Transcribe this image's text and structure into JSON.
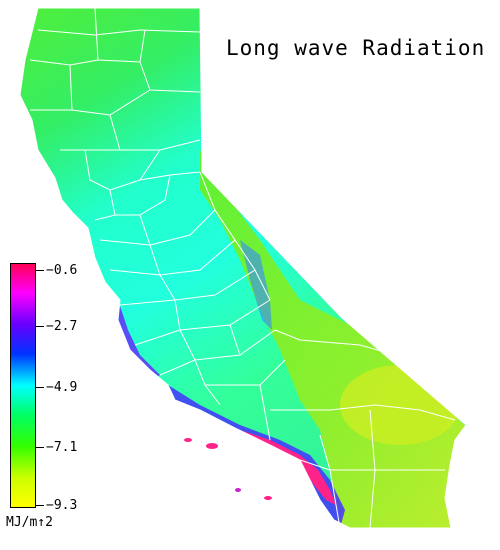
{
  "title": "Long wave Radiation",
  "legend": {
    "ticks": [
      "−0.6",
      "−2.7",
      "−4.9",
      "−7.1",
      "−9.3"
    ],
    "unit": "MJ/m↑2",
    "colors": [
      "#ff0055",
      "#ff00ff",
      "#6600ff",
      "#0033ff",
      "#00ffff",
      "#00ff66",
      "#33ff00",
      "#ccff00",
      "#ffff00"
    ]
  },
  "map": {
    "region": "California",
    "palette": {
      "north": "#44ee22",
      "central": "#22ffee",
      "east": "#77ee22",
      "southeast": "#bbee22",
      "coast": "#7722ff",
      "hot": "#ff2288",
      "boundary": "#ffffff"
    }
  }
}
